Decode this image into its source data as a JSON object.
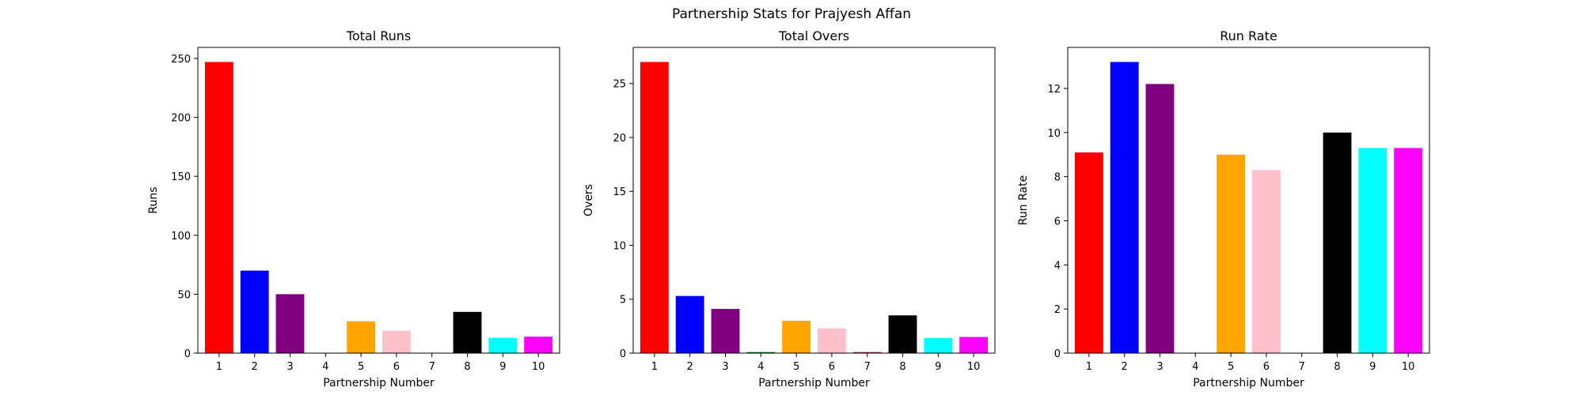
{
  "suptitle": "Partnership Stats for Prajyesh Affan",
  "chart_data": [
    {
      "type": "bar",
      "title": "Total Runs",
      "xlabel": "Partnership Number",
      "ylabel": "Runs",
      "categories": [
        "1",
        "2",
        "3",
        "4",
        "5",
        "6",
        "7",
        "8",
        "9",
        "10"
      ],
      "values": [
        247,
        70,
        50,
        0,
        27,
        19,
        0,
        35,
        13,
        14
      ],
      "colors": [
        "#ff0000",
        "#0000ff",
        "#800080",
        "#008000",
        "#ffa500",
        "#ffc0cb",
        "#a52a2a",
        "#000000",
        "#00ffff",
        "#ff00ff"
      ],
      "ylim": [
        0,
        259.35
      ],
      "yticks": [
        0,
        50,
        100,
        150,
        200,
        250
      ],
      "ytick_labels": [
        "0",
        "50",
        "100",
        "150",
        "200",
        "250"
      ],
      "grid": false
    },
    {
      "type": "bar",
      "title": "Total Overs",
      "xlabel": "Partnership Number",
      "ylabel": "Overs",
      "categories": [
        "1",
        "2",
        "3",
        "4",
        "5",
        "6",
        "7",
        "8",
        "9",
        "10"
      ],
      "values": [
        27,
        5.3,
        4.1,
        0.1,
        3.0,
        2.3,
        0.1,
        3.5,
        1.4,
        1.5
      ],
      "colors": [
        "#ff0000",
        "#0000ff",
        "#800080",
        "#008000",
        "#ffa500",
        "#ffc0cb",
        "#a52a2a",
        "#000000",
        "#00ffff",
        "#ff00ff"
      ],
      "ylim": [
        0,
        28.35
      ],
      "yticks": [
        0,
        5,
        10,
        15,
        20,
        25
      ],
      "ytick_labels": [
        "0",
        "5",
        "10",
        "15",
        "20",
        "25"
      ],
      "grid": false
    },
    {
      "type": "bar",
      "title": "Run Rate",
      "xlabel": "Partnership Number",
      "ylabel": "Run Rate",
      "categories": [
        "1",
        "2",
        "3",
        "4",
        "5",
        "6",
        "7",
        "8",
        "9",
        "10"
      ],
      "values": [
        9.1,
        13.2,
        12.2,
        0,
        9.0,
        8.3,
        0,
        10.0,
        9.3,
        9.3
      ],
      "colors": [
        "#ff0000",
        "#0000ff",
        "#800080",
        "#008000",
        "#ffa500",
        "#ffc0cb",
        "#a52a2a",
        "#000000",
        "#00ffff",
        "#ff00ff"
      ],
      "ylim": [
        0,
        13.86
      ],
      "yticks": [
        0,
        2,
        4,
        6,
        8,
        10,
        12
      ],
      "ytick_labels": [
        "0",
        "2",
        "4",
        "6",
        "8",
        "10",
        "12"
      ],
      "grid": false
    }
  ]
}
